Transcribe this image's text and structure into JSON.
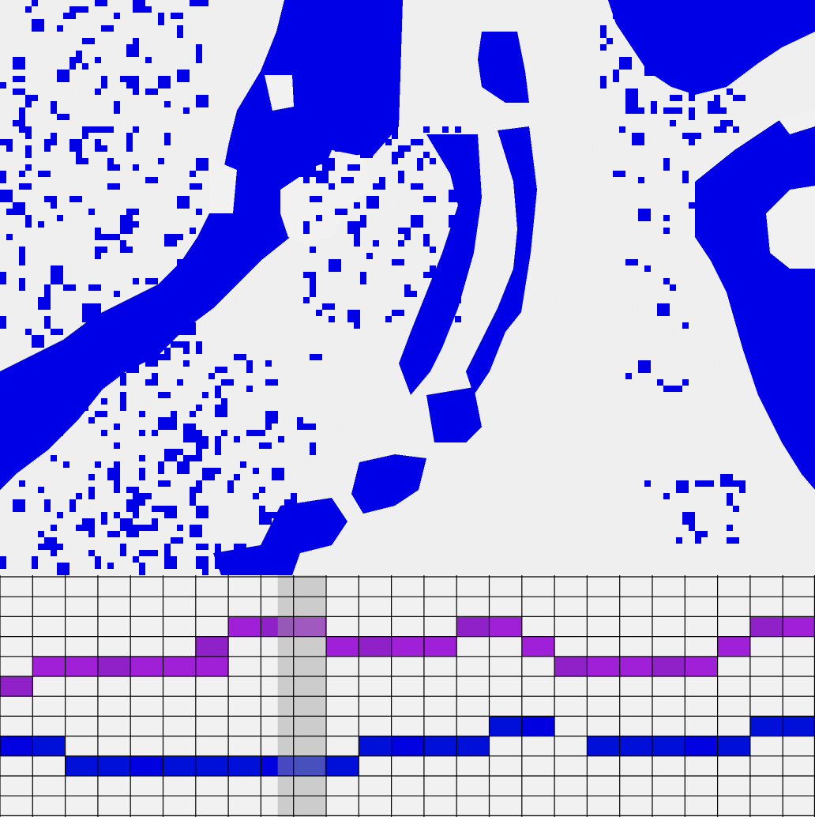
{
  "colors": {
    "map_background": "#f1f1f1",
    "water": "#0000e6",
    "grid_line": "#000000",
    "cell_empty": "#f1f1f1",
    "melody_track": "#a020d8",
    "melody_track_alt": "#9020c8",
    "bass_track": "#0010d8",
    "bass_track_alt": "#0000e0",
    "playhead": "#a0a0a0"
  },
  "sequencer": {
    "columns": 25,
    "rows": 12,
    "playhead_column": 9,
    "melody_notes": [
      {
        "step": 0,
        "row": 5
      },
      {
        "step": 1,
        "row": 4
      },
      {
        "step": 2,
        "row": 4
      },
      {
        "step": 3,
        "row": 4
      },
      {
        "step": 4,
        "row": 4
      },
      {
        "step": 5,
        "row": 4
      },
      {
        "step": 6,
        "row": 3
      },
      {
        "step": 6,
        "row": 4
      },
      {
        "step": 7,
        "row": 2
      },
      {
        "step": 8,
        "row": 2
      },
      {
        "step": 9,
        "row": 2
      },
      {
        "step": 10,
        "row": 3
      },
      {
        "step": 11,
        "row": 3
      },
      {
        "step": 12,
        "row": 3
      },
      {
        "step": 13,
        "row": 3
      },
      {
        "step": 14,
        "row": 2
      },
      {
        "step": 15,
        "row": 2
      },
      {
        "step": 16,
        "row": 3
      },
      {
        "step": 17,
        "row": 4
      },
      {
        "step": 18,
        "row": 4
      },
      {
        "step": 19,
        "row": 4
      },
      {
        "step": 20,
        "row": 4
      },
      {
        "step": 21,
        "row": 4
      },
      {
        "step": 22,
        "row": 3
      },
      {
        "step": 23,
        "row": 2
      },
      {
        "step": 24,
        "row": 2
      }
    ],
    "bass_notes": [
      {
        "step": 0,
        "row": 8
      },
      {
        "step": 1,
        "row": 8
      },
      {
        "step": 2,
        "row": 9
      },
      {
        "step": 3,
        "row": 9
      },
      {
        "step": 4,
        "row": 9
      },
      {
        "step": 5,
        "row": 9
      },
      {
        "step": 6,
        "row": 9
      },
      {
        "step": 7,
        "row": 9
      },
      {
        "step": 8,
        "row": 9
      },
      {
        "step": 9,
        "row": 9
      },
      {
        "step": 10,
        "row": 9
      },
      {
        "step": 11,
        "row": 8
      },
      {
        "step": 12,
        "row": 8
      },
      {
        "step": 13,
        "row": 8
      },
      {
        "step": 14,
        "row": 8
      },
      {
        "step": 15,
        "row": 7
      },
      {
        "step": 16,
        "row": 7
      },
      {
        "step": 18,
        "row": 8
      },
      {
        "step": 19,
        "row": 8
      },
      {
        "step": 20,
        "row": 8
      },
      {
        "step": 21,
        "row": 8
      },
      {
        "step": 22,
        "row": 8
      },
      {
        "step": 23,
        "row": 7
      },
      {
        "step": 24,
        "row": 7
      }
    ]
  }
}
